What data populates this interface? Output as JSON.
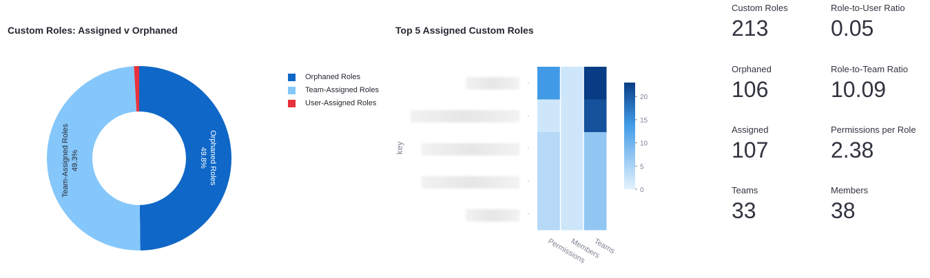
{
  "chart_data": [
    {
      "type": "pie",
      "title": "Custom Roles: Assigned v Orphaned",
      "donut": true,
      "legend": "right",
      "slices": [
        {
          "label": "Orphaned Roles",
          "percent_label": "49.8%",
          "value": 49.8,
          "color": "#0f67c7"
        },
        {
          "label": "Team-Assigned Roles",
          "percent_label": "49.3%",
          "value": 49.3,
          "color": "#85c7fa"
        },
        {
          "label": "User-Assigned Roles",
          "percent_label": "",
          "value": 0.9,
          "color": "#e8313b"
        }
      ]
    },
    {
      "type": "heatmap",
      "title": "Top 5 Assigned Custom Roles",
      "ylabel": "key",
      "x_categories": [
        "Permissions",
        "Members",
        "Teams"
      ],
      "rows": 5,
      "values": [
        [
          14,
          2,
          23
        ],
        [
          2,
          2,
          21
        ],
        [
          4,
          2,
          7
        ],
        [
          4,
          2,
          7
        ],
        [
          4,
          2,
          7
        ]
      ],
      "colorbar": {
        "min": 0,
        "max": 23,
        "ticks": [
          "0",
          "5",
          "10",
          "15",
          "20"
        ],
        "low_color": "#e5f2fd",
        "high_color": "#083d85"
      }
    }
  ],
  "metrics": [
    {
      "label": "Custom Roles",
      "value": "213"
    },
    {
      "label": "Role-to-User Ratio",
      "value": "0.05"
    },
    {
      "label": "Orphaned",
      "value": "106"
    },
    {
      "label": "Role-to-Team Ratio",
      "value": "10.09"
    },
    {
      "label": "Assigned",
      "value": "107"
    },
    {
      "label": "Permissions per Role",
      "value": "2.38"
    },
    {
      "label": "Teams",
      "value": "33"
    },
    {
      "label": "Members",
      "value": "38"
    }
  ]
}
